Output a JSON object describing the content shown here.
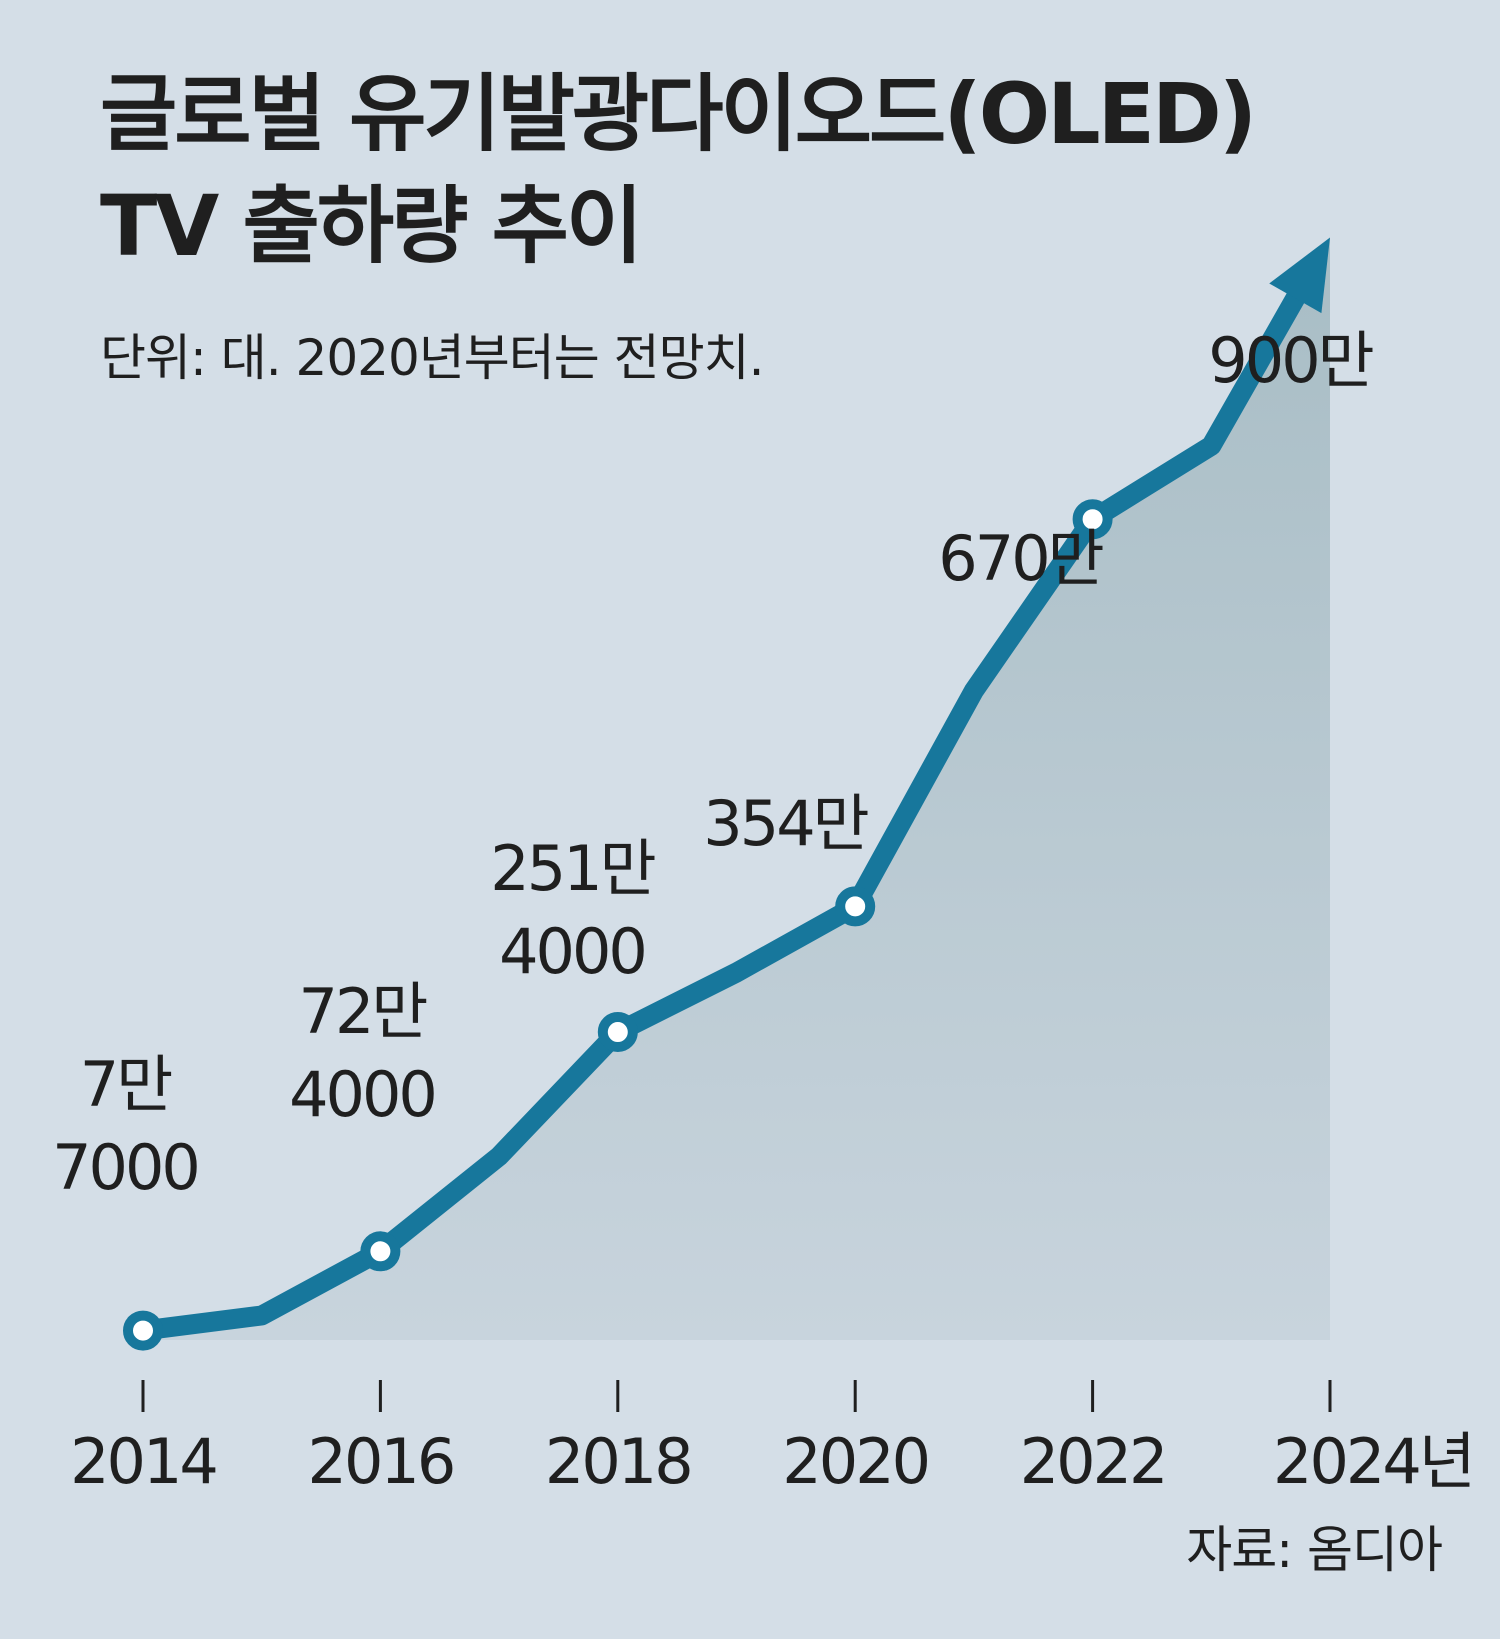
{
  "title_line1": "글로벌 유기발광다이오드(OLED)",
  "title_line2": "TV 출하량 추이",
  "subtitle": "단위: 대. 2020년부터는 전망치.",
  "source": "자료: 옴디아",
  "colors": {
    "background": "#d4dee7",
    "line": "#17779c",
    "area_top": "#a8bdc5",
    "area_bottom": "#c8d4dd",
    "text": "#1f1f1f"
  },
  "chart_data": {
    "type": "line",
    "title": "글로벌 유기발광다이오드(OLED) TV 출하량 추이",
    "unit": "대",
    "note": "2020년부터는 전망치",
    "x": [
      2014,
      2015,
      2016,
      2017,
      2018,
      2019,
      2020,
      2021,
      2022,
      2023,
      2024
    ],
    "values": [
      77000,
      200000,
      724000,
      1500000,
      2514000,
      3000000,
      3540000,
      5300000,
      6700000,
      7300000,
      9000000
    ],
    "marked_years": [
      2014,
      2016,
      2018,
      2020,
      2022
    ],
    "xlim": [
      2014,
      2024
    ],
    "ylim": [
      0,
      10000000
    ],
    "tick_labels": [
      "2014",
      "2016",
      "2018",
      "2020",
      "2022",
      "2024년"
    ],
    "data_labels": [
      {
        "year": 2014,
        "lines": [
          "7만",
          "7000"
        ]
      },
      {
        "year": 2016,
        "lines": [
          "72만",
          "4000"
        ]
      },
      {
        "year": 2018,
        "lines": [
          "251만",
          "4000"
        ]
      },
      {
        "year": 2020,
        "lines": [
          "354만"
        ]
      },
      {
        "year": 2022,
        "lines": [
          "670만"
        ]
      },
      {
        "year": 2024,
        "lines": [
          "900만"
        ]
      }
    ],
    "arrow_at_end": true,
    "grid": false
  }
}
